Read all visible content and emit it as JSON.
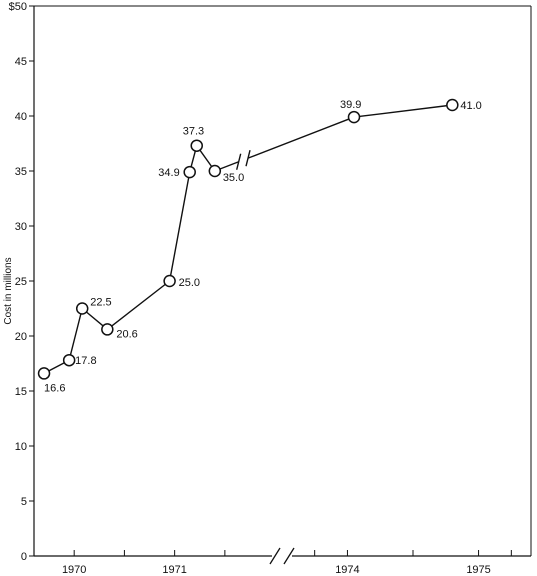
{
  "chart_data": {
    "type": "line",
    "ylabel": "Cost in millions",
    "xlabel": "",
    "title": "",
    "ylim": [
      0,
      50
    ],
    "y_ticks": [
      0,
      5,
      10,
      15,
      20,
      25,
      30,
      35,
      40,
      45,
      50
    ],
    "y_tick_labels": [
      "0",
      "5",
      "10",
      "15",
      "20",
      "25",
      "30",
      "35",
      "40",
      "45",
      "$50"
    ],
    "x_axis": {
      "segments": [
        {
          "start": 1969.6,
          "end": 1971.8
        },
        {
          "start": 1973.6,
          "end": 1975.4
        }
      ],
      "axis_break_between_segments": true,
      "tick_labels": [
        "1970",
        "1971",
        "1974",
        "1975"
      ],
      "tick_label_values": [
        1970,
        1971,
        1974,
        1975
      ],
      "minor_ticks": [
        1970.5,
        1971.5,
        1973.75,
        1974.5,
        1975.25
      ]
    },
    "grid": false,
    "legend": "none",
    "series": [
      {
        "x": [
          1969.7,
          1969.95,
          1970.08,
          1970.33,
          1970.95,
          1971.15,
          1971.22,
          1971.4
        ],
        "values": [
          16.6,
          17.8,
          22.5,
          20.6,
          25.0,
          34.9,
          37.3,
          35.0
        ],
        "labels": [
          "16.6",
          "17.8",
          "22.5",
          "20.6",
          "25.0",
          "34.9",
          "37.3",
          "35.0"
        ]
      },
      {
        "x": [
          1974.05,
          1974.8
        ],
        "values": [
          39.9,
          41.0
        ],
        "labels": [
          "39.9",
          "41.0"
        ]
      }
    ],
    "bridge_segment_has_break_marks": true,
    "line_color": "#111111",
    "marker": "open-circle"
  }
}
